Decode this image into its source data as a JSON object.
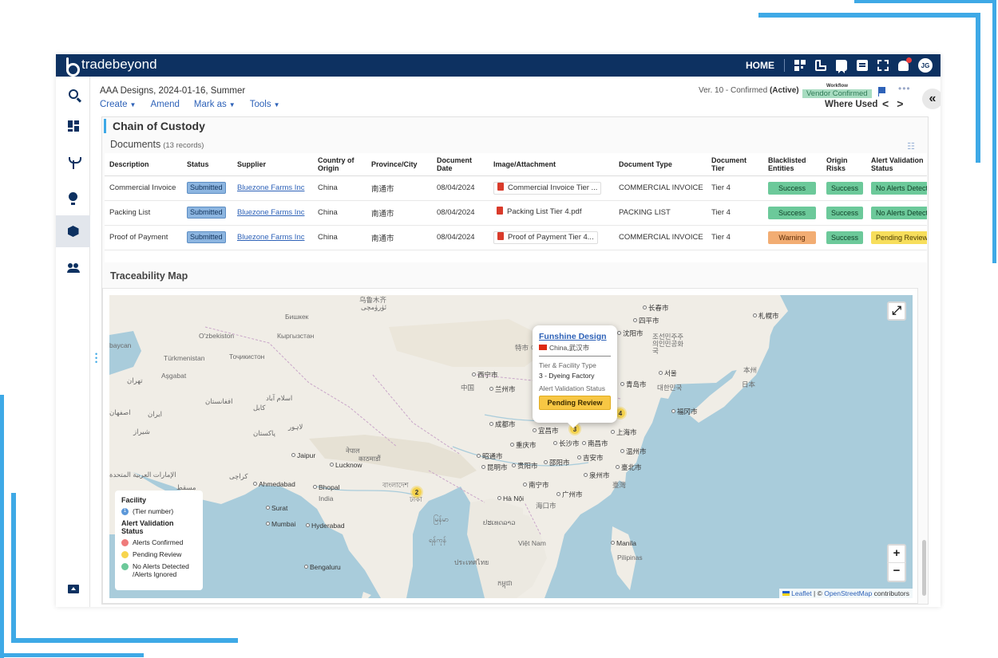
{
  "topbar": {
    "brand": "tradebeyond",
    "home_label": "HOME",
    "avatar_initials": "JG"
  },
  "header": {
    "doc_title": "AAA Designs, 2024-01-16, Summer",
    "menu": {
      "create": "Create",
      "amend": "Amend",
      "mark_as": "Mark as",
      "tools": "Tools"
    },
    "version": "Ver. 10 - Confirmed",
    "version_state": "(Active)",
    "workflow_label": "Workflow",
    "workflow_status": "Vendor Confirmed",
    "where_used": "Where Used",
    "nav_prev": "<",
    "nav_next": ">",
    "collapse": "«"
  },
  "section": {
    "title": "Chain of Custody",
    "documents_title": "Documents",
    "documents_count": "(13 records)"
  },
  "table": {
    "columns": [
      "Description",
      "Status",
      "Supplier",
      "Country of Origin",
      "Province/City",
      "Document Date",
      "Image/Attachment",
      "Document Type",
      "Document Tier",
      "Blacklisted Entities",
      "Origin Risks",
      "Alert Validation Status"
    ],
    "rows": [
      {
        "description": "Commercial Invoice",
        "status": "Submitted",
        "supplier": "Bluezone Farms Inc",
        "country": "China",
        "city": "南通市",
        "date": "08/04/2024",
        "attachment": "Commercial Invoice Tier ...",
        "type": "COMMERCIAL INVOICE",
        "tier": "Tier 4",
        "blacklisted": "Success",
        "origin_risks": "Success",
        "alert": "No Alerts Detected"
      },
      {
        "description": "Packing List",
        "status": "Submitted",
        "supplier": "Bluezone Farms Inc",
        "country": "China",
        "city": "南通市",
        "date": "08/04/2024",
        "attachment": "Packing List Tier 4.pdf",
        "type": "PACKING LIST",
        "tier": "Tier 4",
        "blacklisted": "Success",
        "origin_risks": "Success",
        "alert": "No Alerts Detected"
      },
      {
        "description": "Proof of Payment",
        "status": "Submitted",
        "supplier": "Bluezone Farms Inc",
        "country": "China",
        "city": "南通市",
        "date": "08/04/2024",
        "attachment": "Proof of Payment Tier 4...",
        "type": "COMMERCIAL INVOICE",
        "tier": "Tier 4",
        "blacklisted": "Warning",
        "origin_risks": "Success",
        "alert": "Pending Review"
      }
    ]
  },
  "map": {
    "title": "Traceability Map",
    "popup": {
      "name": "Funshine Design",
      "location": "China,武汉市",
      "tier_label": "Tier & Facility Type",
      "tier_value": "3 - Dyeing Factory",
      "alert_label": "Alert Validation Status",
      "alert_value": "Pending Review"
    },
    "clusters": {
      "india_east": "2",
      "china_east": "4",
      "wuhan": "3"
    },
    "legend": {
      "facility_title": "Facility",
      "tier_number": "(Tier number)",
      "tier_sample": "1",
      "alert_title": "Alert Validation Status",
      "confirmed": "Alerts Confirmed",
      "pending": "Pending Review",
      "no_alerts": "No Alerts Detected /Alerts Ignored"
    },
    "labels": {
      "urumqi": "乌鲁木齐",
      "urumqi_ug": "ئۈرۈمچى",
      "bishkek": "Бишкек",
      "kyrgyz": "Кыргызстан",
      "ozbekiston": "O'zbekiston",
      "baycan": "baycan",
      "turkmenistan": "Türkmenistan",
      "tajik": "Тоҷикистон",
      "asgabat": "Aşgabat",
      "tehran": "تهران",
      "afghanistan": "افغانستان",
      "kabul": "کابل",
      "islamabad": "اسلام آباد",
      "isfahan": "اصفهان",
      "iran": "ایران",
      "shiraz": "شیراز",
      "lahore": "لاہور",
      "pakistan": "پاکستان",
      "karachi": "کراچی",
      "uae": "الإمارات العربية المتحدة",
      "muscat": "مسقط",
      "jaipur": "Jaipur",
      "nepal": "नेपाल",
      "kathmandu": "काठमाडौं",
      "lucknow": "Lucknow",
      "ahmedabad": "Ahmedabad",
      "bhopal": "Bhopal",
      "india": "India",
      "surat": "Surat",
      "mumbai": "Mumbai",
      "hyderabad": "Hyderabad",
      "bengaluru": "Bengaluru",
      "bangladesh": "বাংলাদেশ",
      "dhaka": "ঢাকা",
      "myanmar": "မြန်မာ",
      "yangon": "ရန်ကုန်",
      "thailand": "ประเทศไทย",
      "laos": "ປະເທດລາວ",
      "cambodia": "កម្ពុជា",
      "vietnam": "Việt Nam",
      "hanoi": "Hà Nội",
      "manila": "Manila",
      "pilipinas": "Pilipinas",
      "changchun": "长春市",
      "siping": "四平市",
      "shenyang": "沈阳市",
      "korea_n": "조선민주주의인민공화국",
      "sapporo": "札幌市",
      "seoul": "서울",
      "korea_s": "대한민국",
      "japan": "日本",
      "honshu": "本州",
      "fukuoka": "福冈市",
      "xining": "西宁市",
      "china": "中国",
      "lanzhou": "兰州市",
      "qingdao": "青岛市",
      "chengdu": "成都市",
      "yichang": "宜昌市",
      "shanghai": "上海市",
      "chongqing": "重庆市",
      "changsha": "长沙市",
      "nanchang": "南昌市",
      "wenzhou": "温州市",
      "zhaotong": "昭通市",
      "kunming": "昆明市",
      "guiyang": "贵阳市",
      "shaoyang": "邵阳市",
      "jian": "吉安市",
      "taipei": "臺北市",
      "quanzhou": "泉州市",
      "taiwan": "臺灣",
      "nanning": "南宁市",
      "guangzhou": "广州市",
      "haikou": "海口市",
      "tezhi": "特市 ⊙"
    },
    "zoom_in": "+",
    "zoom_out": "−",
    "fullscreen": "⤢",
    "attribution_leaflet": "Leaflet",
    "attribution_sep": " | © ",
    "attribution_osm": "OpenStreetMap",
    "attribution_tail": " contributors"
  },
  "colors": {
    "topbar": "#0d3161",
    "accent": "#3ea9e6",
    "success": "#6cc99a",
    "warning": "#f2ad73",
    "pending": "#f7de5c",
    "confirmed_dot": "#ef7b7b"
  }
}
